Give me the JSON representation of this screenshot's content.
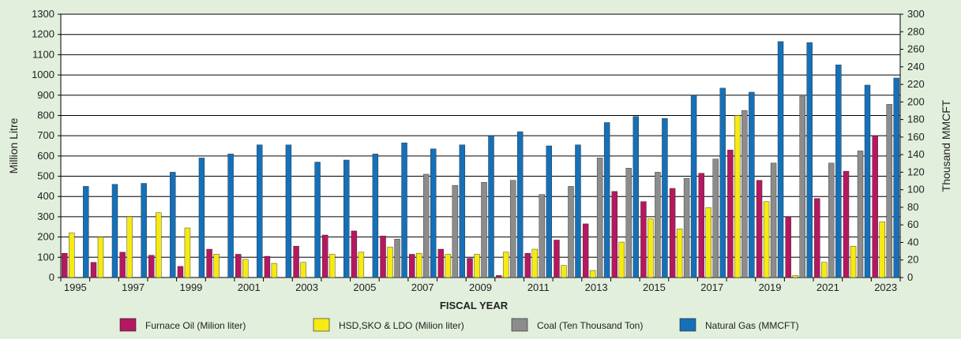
{
  "chart_data": {
    "type": "bar",
    "xlabel": "FISCAL YEAR",
    "ylabel": "Million Litre",
    "y2label": "Thousand MMCFT",
    "ylim": [
      0,
      1300
    ],
    "y2lim": [
      0,
      300
    ],
    "yticks": [
      0,
      100,
      200,
      300,
      400,
      500,
      600,
      700,
      800,
      900,
      1000,
      1100,
      1200,
      1300
    ],
    "y2ticks": [
      0,
      20,
      40,
      60,
      80,
      100,
      120,
      140,
      160,
      180,
      200,
      220,
      240,
      260,
      280,
      300
    ],
    "x_tick_labels": [
      "1995",
      "1997",
      "1999",
      "2001",
      "2003",
      "2005",
      "2007",
      "2009",
      "2011",
      "2013",
      "2015",
      "2017",
      "2019",
      "2021",
      "2023"
    ],
    "grid": "horizontal",
    "legend_position": "bottom",
    "categories": [
      "1995",
      "1996",
      "1997",
      "1998",
      "1999",
      "2000",
      "2001",
      "2002",
      "2003",
      "2004",
      "2005",
      "2006",
      "2007",
      "2008",
      "2009",
      "2010",
      "2011",
      "2012",
      "2013",
      "2014",
      "2015",
      "2016",
      "2017",
      "2018",
      "2019",
      "2020",
      "2021",
      "2022",
      "2023"
    ],
    "series": [
      {
        "name": "Furnace Oil (Milion liter)",
        "color": "#b5185f",
        "axis": "left",
        "values": [
          120,
          75,
          125,
          110,
          55,
          140,
          115,
          105,
          155,
          210,
          230,
          205,
          115,
          140,
          95,
          10,
          120,
          185,
          265,
          425,
          375,
          440,
          515,
          630,
          480,
          300,
          390,
          525,
          700
        ]
      },
      {
        "name": "HSD,SKO & LDO (Milion liter)",
        "color": "#f5ea14",
        "axis": "left",
        "values": [
          220,
          200,
          300,
          320,
          245,
          115,
          90,
          70,
          75,
          115,
          125,
          150,
          120,
          115,
          115,
          125,
          140,
          60,
          35,
          175,
          290,
          240,
          345,
          800,
          375,
          10,
          75,
          155,
          275
        ]
      },
      {
        "name": "Coal (Ten Thousand Ton)",
        "color": "#8c8c8c",
        "axis": "left",
        "values": [
          0,
          0,
          0,
          0,
          0,
          0,
          0,
          0,
          0,
          0,
          0,
          190,
          510,
          455,
          470,
          480,
          410,
          450,
          590,
          540,
          520,
          490,
          585,
          825,
          565,
          895,
          565,
          625,
          855
        ]
      },
      {
        "name": "Natural Gas (MMCFT)",
        "color": "#1570b8",
        "axis": "left",
        "values": [
          450,
          460,
          465,
          520,
          590,
          610,
          655,
          655,
          570,
          580,
          610,
          665,
          635,
          655,
          700,
          720,
          650,
          655,
          765,
          795,
          785,
          900,
          935,
          915,
          1165,
          1160,
          1050,
          950,
          985
        ]
      }
    ]
  }
}
